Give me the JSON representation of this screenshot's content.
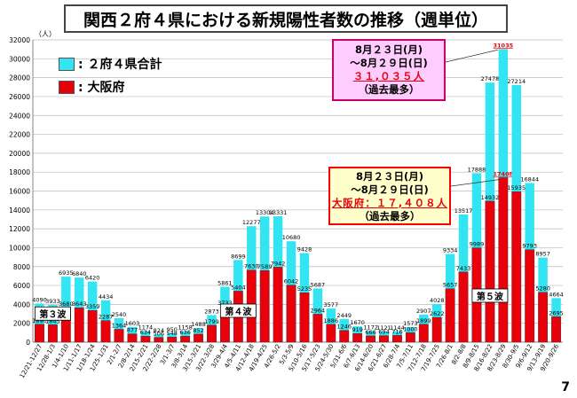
{
  "title": "関西２府４県における新規陽性者数の推移（週単位）",
  "y_unit": "（人）",
  "page_number": "7",
  "legend": {
    "total": ": ２府４県合計",
    "osaka": ": 大阪府"
  },
  "colors": {
    "total": "#33e5f2",
    "osaka": "#e8000b",
    "osaka_peak_label": "#e8000b",
    "total_peak_label": "#e8000b",
    "callout_total_bg": "#ffccff",
    "callout_osaka_bg": "#ffffcc",
    "callout_total_border": "#cc0066",
    "callout_osaka_border": "#ff0000"
  },
  "wave_labels": [
    "第３波",
    "第４波",
    "第５波"
  ],
  "callout_total": {
    "line1": "8月２３日(月)",
    "line2": "～8月２９日(日)",
    "line3": "３１,０３５人",
    "line4": "（過去最多）"
  },
  "callout_osaka": {
    "line1": "8月２３日(月)",
    "line2": "～8月２９日(日)",
    "line3": "大阪府：１７,４０８人",
    "line4": "（過去最多）"
  },
  "chart_data": {
    "type": "bar",
    "title": "関西２府４県における新規陽性者数の推移（週単位）",
    "ylabel": "（人）",
    "ylim": [
      0,
      32000
    ],
    "yticks": [
      0,
      2000,
      4000,
      6000,
      8000,
      10000,
      12000,
      14000,
      16000,
      18000,
      20000,
      22000,
      24000,
      26000,
      28000,
      30000,
      32000
    ],
    "grid": true,
    "overlapping_bars": true,
    "categories": [
      "12/21-12/27",
      "12/28-1/3",
      "1/4-1/10",
      "1/11-1/17",
      "1/18-1/24",
      "1/25-1/31",
      "2/1-2/7",
      "2/8-2/14",
      "2/15-2/21",
      "2/22-2/28",
      "3/1-3/7",
      "3/8-3/14",
      "3/15-3/21",
      "3/22-3/28",
      "3/29-4/4",
      "4/5-4/11",
      "4/12-4/18",
      "4/19-4/25",
      "4/26-5/2",
      "5/3-5/9",
      "5/10-5/16",
      "5/17-5/23",
      "5/24-5/30",
      "5/31-6/6",
      "6/7-6/13",
      "6/14-6/20",
      "6/21-6/27",
      "6/28-7/4",
      "7/5-7/11",
      "7/12-7/18",
      "7/19-7/25",
      "7/26-8/1",
      "8/2-8/8",
      "8/9-8/15",
      "8/16-8/22",
      "8/23-8/29",
      "8/30-9/5",
      "9/6-9/12",
      "9/13-9/19",
      "9/20-9/26"
    ],
    "series": [
      {
        "name": "２府４県合計",
        "values": [
          4090,
          3933,
          6935,
          6840,
          6420,
          4434,
          2540,
          1603,
          1174,
          824,
          950,
          1158,
          1488,
          2873,
          5861,
          8699,
          12277,
          13304,
          13331,
          10680,
          9428,
          5687,
          3577,
          2449,
          1670,
          1172,
          1121,
          1144,
          1573,
          2907,
          4028,
          9334,
          13517,
          17888,
          27478,
          31035,
          27214,
          16844,
          8957,
          4664
        ]
      },
      {
        "name": "大阪府",
        "values": [
          1890,
          1845,
          3680,
          3643,
          3359,
          2287,
          1364,
          877,
          634,
          506,
          548,
          636,
          852,
          1799,
          3733,
          5404,
          7630,
          7589,
          7942,
          6042,
          5235,
          2964,
          1886,
          1246,
          919,
          666,
          694,
          716,
          1000,
          1899,
          2622,
          5657,
          7433,
          9989,
          14932,
          17408,
          15935,
          9793,
          5280,
          2695
        ]
      }
    ]
  }
}
